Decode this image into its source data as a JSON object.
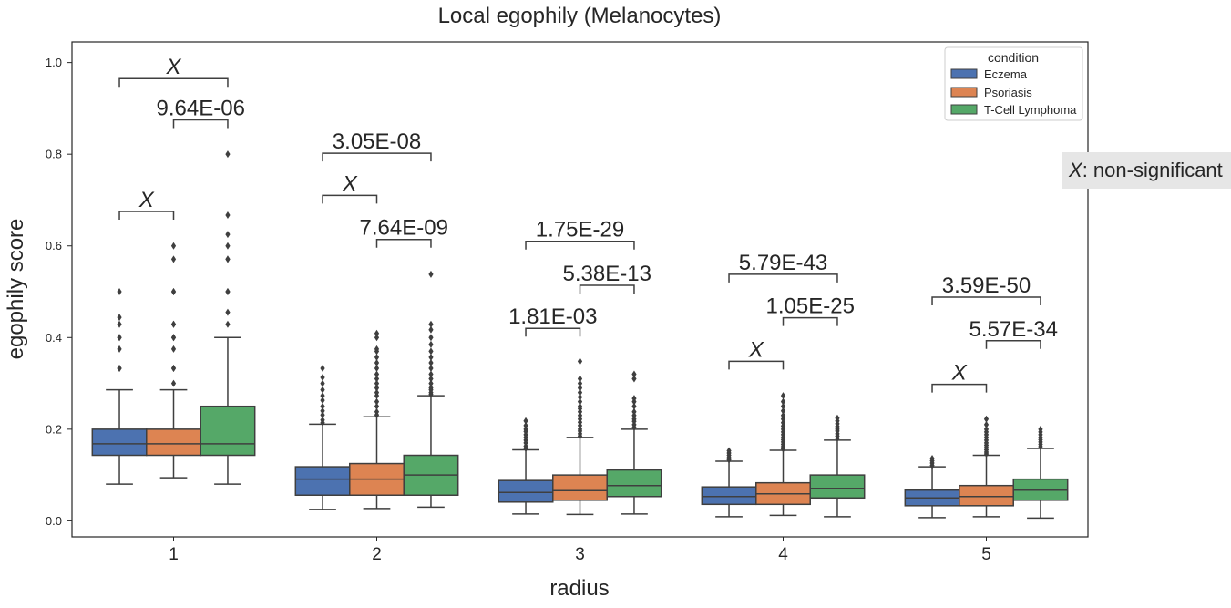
{
  "chart_data": {
    "type": "boxplot",
    "title": "Local egophily (Melanocytes)",
    "xlabel": "radius",
    "ylabel": "egophily score",
    "categories": [
      "1",
      "2",
      "3",
      "4",
      "5"
    ],
    "ylim": [
      -0.035,
      1.045
    ],
    "yticks": [
      "0.0",
      "0.2",
      "0.4",
      "0.6",
      "0.8",
      "1.0"
    ],
    "grid": false,
    "legend": {
      "title": "condition",
      "position": "top-right",
      "entries": [
        "Eczema",
        "Psoriasis",
        "T-Cell Lymphoma"
      ]
    },
    "colors": {
      "Eczema": "#4c72b0",
      "Psoriasis": "#dd8452",
      "T-Cell Lymphoma": "#55a868"
    },
    "series": [
      {
        "name": "Eczema",
        "boxes": [
          {
            "whislo": 0.08,
            "q1": 0.143,
            "med": 0.168,
            "q3": 0.2,
            "whishi": 0.286,
            "fliers": [
              0.333,
              0.333,
              0.375,
              0.4,
              0.4,
              0.429,
              0.444,
              0.5
            ]
          },
          {
            "whislo": 0.025,
            "q1": 0.056,
            "med": 0.091,
            "q3": 0.118,
            "whishi": 0.211,
            "fliers": [
              0.214,
              0.22,
              0.231,
              0.24,
              0.25,
              0.263,
              0.273,
              0.286,
              0.3,
              0.313,
              0.333
            ]
          },
          {
            "whislo": 0.015,
            "q1": 0.041,
            "med": 0.062,
            "q3": 0.088,
            "whishi": 0.155,
            "fliers": [
              0.158,
              0.163,
              0.17,
              0.176,
              0.182,
              0.188,
              0.195,
              0.2,
              0.208,
              0.218
            ]
          },
          {
            "whislo": 0.009,
            "q1": 0.036,
            "med": 0.053,
            "q3": 0.074,
            "whishi": 0.13,
            "fliers": [
              0.133,
              0.138,
              0.143,
              0.148,
              0.153
            ]
          },
          {
            "whislo": 0.007,
            "q1": 0.033,
            "med": 0.05,
            "q3": 0.067,
            "whishi": 0.118,
            "fliers": [
              0.121,
              0.126,
              0.131,
              0.136
            ]
          }
        ]
      },
      {
        "name": "Psoriasis",
        "boxes": [
          {
            "whislo": 0.094,
            "q1": 0.143,
            "med": 0.168,
            "q3": 0.2,
            "whishi": 0.286,
            "fliers": [
              0.3,
              0.333,
              0.333,
              0.375,
              0.4,
              0.4,
              0.429,
              0.429,
              0.5,
              0.5,
              0.571,
              0.6
            ]
          },
          {
            "whislo": 0.027,
            "q1": 0.056,
            "med": 0.091,
            "q3": 0.125,
            "whishi": 0.227,
            "fliers": [
              0.231,
              0.238,
              0.25,
              0.26,
              0.273,
              0.28,
              0.29,
              0.3,
              0.31,
              0.32,
              0.333,
              0.345,
              0.357,
              0.37,
              0.375,
              0.4,
              0.409
            ]
          },
          {
            "whislo": 0.014,
            "q1": 0.045,
            "med": 0.066,
            "q3": 0.1,
            "whishi": 0.182,
            "fliers": [
              0.185,
              0.19,
              0.196,
              0.2,
              0.208,
              0.215,
              0.222,
              0.23,
              0.238,
              0.245,
              0.25,
              0.26,
              0.27,
              0.28,
              0.29,
              0.3,
              0.31,
              0.348
            ]
          },
          {
            "whislo": 0.012,
            "q1": 0.036,
            "med": 0.059,
            "q3": 0.083,
            "whishi": 0.154,
            "fliers": [
              0.157,
              0.162,
              0.167,
              0.172,
              0.177,
              0.182,
              0.188,
              0.194,
              0.2,
              0.207,
              0.214,
              0.222,
              0.23,
              0.24,
              0.25,
              0.26,
              0.273
            ]
          },
          {
            "whislo": 0.009,
            "q1": 0.033,
            "med": 0.053,
            "q3": 0.077,
            "whishi": 0.143,
            "fliers": [
              0.146,
              0.15,
              0.155,
              0.16,
              0.165,
              0.17,
              0.176,
              0.182,
              0.188,
              0.194,
              0.2,
              0.21,
              0.222
            ]
          }
        ]
      },
      {
        "name": "T-Cell Lymphoma",
        "boxes": [
          {
            "whislo": 0.08,
            "q1": 0.143,
            "med": 0.168,
            "q3": 0.25,
            "whishi": 0.4,
            "fliers": [
              0.429,
              0.455,
              0.5,
              0.5,
              0.571,
              0.571,
              0.6,
              0.625,
              0.667,
              0.8
            ]
          },
          {
            "whislo": 0.03,
            "q1": 0.056,
            "med": 0.1,
            "q3": 0.143,
            "whishi": 0.273,
            "fliers": [
              0.276,
              0.28,
              0.286,
              0.29,
              0.3,
              0.31,
              0.32,
              0.333,
              0.345,
              0.357,
              0.37,
              0.385,
              0.4,
              0.417,
              0.429,
              0.538
            ]
          },
          {
            "whislo": 0.015,
            "q1": 0.053,
            "med": 0.077,
            "q3": 0.111,
            "whishi": 0.2,
            "fliers": [
              0.204,
              0.21,
              0.217,
              0.222,
              0.23,
              0.238,
              0.25,
              0.26,
              0.267,
              0.31,
              0.32
            ]
          },
          {
            "whislo": 0.009,
            "q1": 0.05,
            "med": 0.071,
            "q3": 0.1,
            "whishi": 0.176,
            "fliers": [
              0.18,
              0.185,
              0.19,
              0.196,
              0.2,
              0.206,
              0.212,
              0.218,
              0.224
            ]
          },
          {
            "whislo": 0.006,
            "q1": 0.045,
            "med": 0.067,
            "q3": 0.091,
            "whishi": 0.158,
            "fliers": [
              0.162,
              0.167,
              0.172,
              0.177,
              0.182,
              0.188,
              0.194,
              0.2
            ]
          }
        ]
      }
    ],
    "annotations": [
      {
        "category": 0,
        "from": 0,
        "to": 2,
        "y": 0.965,
        "label": "X",
        "italic": true
      },
      {
        "category": 0,
        "from": 1,
        "to": 2,
        "y": 0.875,
        "label": "9.64E-06"
      },
      {
        "category": 0,
        "from": 0,
        "to": 1,
        "y": 0.675,
        "label": "X",
        "italic": true
      },
      {
        "category": 1,
        "from": 0,
        "to": 2,
        "y": 0.802,
        "label": "3.05E-08"
      },
      {
        "category": 1,
        "from": 0,
        "to": 1,
        "y": 0.71,
        "label": "X",
        "italic": true
      },
      {
        "category": 1,
        "from": 1,
        "to": 2,
        "y": 0.614,
        "label": "7.64E-09"
      },
      {
        "category": 2,
        "from": 0,
        "to": 2,
        "y": 0.61,
        "label": "1.75E-29"
      },
      {
        "category": 2,
        "from": 1,
        "to": 2,
        "y": 0.514,
        "label": "5.38E-13"
      },
      {
        "category": 2,
        "from": 0,
        "to": 1,
        "y": 0.42,
        "label": "1.81E-03"
      },
      {
        "category": 3,
        "from": 0,
        "to": 2,
        "y": 0.538,
        "label": "5.79E-43"
      },
      {
        "category": 3,
        "from": 1,
        "to": 2,
        "y": 0.443,
        "label": "1.05E-25"
      },
      {
        "category": 3,
        "from": 0,
        "to": 1,
        "y": 0.348,
        "label": "X",
        "italic": true
      },
      {
        "category": 4,
        "from": 0,
        "to": 2,
        "y": 0.488,
        "label": "3.59E-50"
      },
      {
        "category": 4,
        "from": 1,
        "to": 2,
        "y": 0.393,
        "label": "5.57E-34"
      },
      {
        "category": 4,
        "from": 0,
        "to": 1,
        "y": 0.298,
        "label": "X",
        "italic": true
      }
    ],
    "note": {
      "symbol": "X",
      "text": ": non-significant"
    }
  }
}
